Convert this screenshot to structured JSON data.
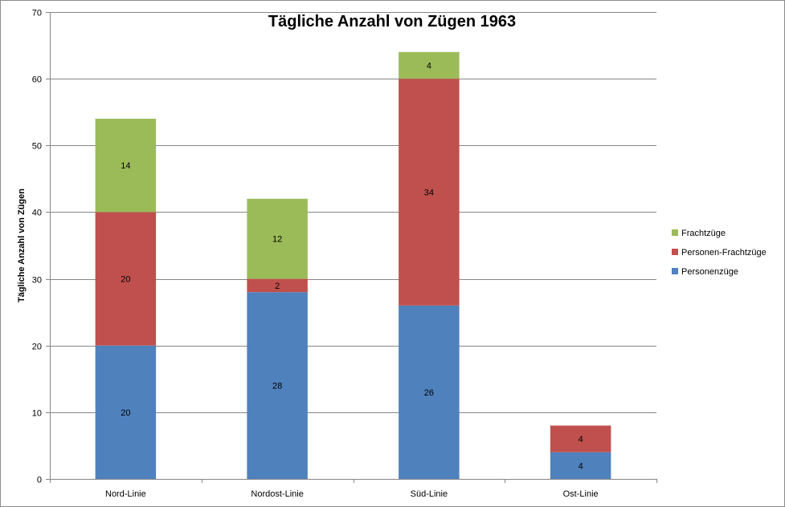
{
  "chart_data": {
    "type": "bar",
    "stacked": true,
    "title": "Tägliche Anzahl von Zügen 1963",
    "xlabel": "",
    "ylabel": "Tägliche  Anzahl von Zügen",
    "ylim": [
      0,
      70
    ],
    "yticks": [
      "0",
      "10",
      "20",
      "30",
      "40",
      "50",
      "60",
      "70"
    ],
    "grid": true,
    "legend_position": "right",
    "categories": [
      "Nord-Linie",
      "Nordost-Linie",
      "Süd-Linie",
      "Ost-Linie"
    ],
    "series": [
      {
        "name": "Personenzüge",
        "color": "#4F81BD",
        "values": [
          20,
          28,
          26,
          4
        ]
      },
      {
        "name": "Personen-Frachtzüge",
        "color": "#C0504D",
        "values": [
          20,
          2,
          34,
          4
        ]
      },
      {
        "name": "Frachtzüge",
        "color": "#9BBB59",
        "values": [
          14,
          12,
          4,
          0
        ]
      }
    ]
  }
}
